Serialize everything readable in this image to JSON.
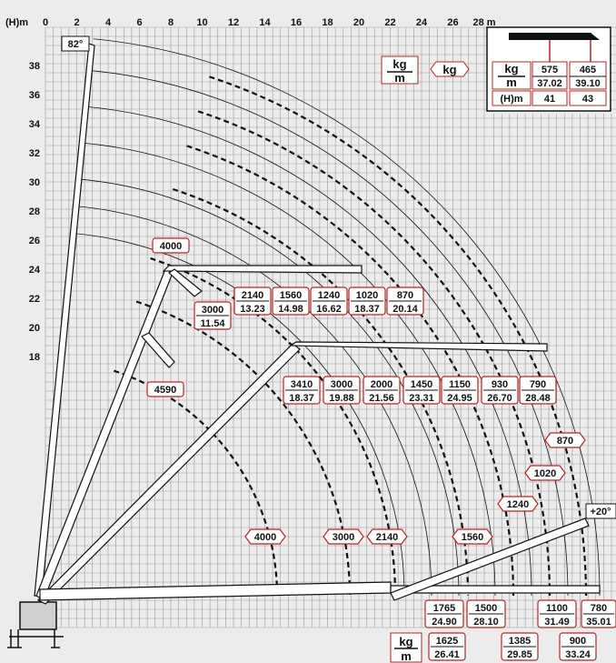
{
  "chart_data": {
    "type": "diagram",
    "x_axis": {
      "unit_label": "(H)m",
      "ticks": [
        "0",
        "2",
        "4",
        "6",
        "8",
        "10",
        "12",
        "14",
        "16",
        "18",
        "20",
        "22",
        "24",
        "26",
        "28 m"
      ]
    },
    "y_axis": {
      "ticks": [
        "38",
        "36",
        "34",
        "32",
        "30",
        "28",
        "26",
        "24",
        "22",
        "20",
        "18"
      ]
    },
    "angles": {
      "max": "82°",
      "min": "+20°"
    },
    "header_legend": {
      "kg_per_m_top": "kg",
      "kg_per_m_bottom": "m",
      "kg": "kg"
    },
    "extension_table": {
      "kg_top": "kg",
      "kg_bottom": "m",
      "h_label": "(H)m",
      "columns": [
        {
          "load": "575",
          "reach": "37.02",
          "height": "41"
        },
        {
          "load": "465",
          "reach": "39.10",
          "height": "43"
        }
      ]
    },
    "upper_loads": [
      {
        "load": "4000"
      },
      {
        "load": "3000",
        "reach": "11.54"
      },
      {
        "load": "2140",
        "reach": "13.23"
      },
      {
        "load": "1560",
        "reach": "14.98"
      },
      {
        "load": "1240",
        "reach": "16.62"
      },
      {
        "load": "1020",
        "reach": "18.37"
      },
      {
        "load": "870",
        "reach": "20.14"
      }
    ],
    "middle_loads": [
      {
        "load": "4590"
      },
      {
        "load": "3410",
        "reach": "18.37"
      },
      {
        "load": "3000",
        "reach": "19.88"
      },
      {
        "load": "2000",
        "reach": "21.56"
      },
      {
        "load": "1450",
        "reach": "23.31"
      },
      {
        "load": "1150",
        "reach": "24.95"
      },
      {
        "load": "930",
        "reach": "26.70"
      },
      {
        "load": "790",
        "reach": "28.48"
      }
    ],
    "curve_loads": [
      "4000",
      "3000",
      "2140",
      "1560",
      "1240",
      "1020",
      "870"
    ],
    "bottom_loads": [
      {
        "load": "1765",
        "reach": "24.90"
      },
      {
        "load": "1625",
        "reach": "26.41"
      },
      {
        "load": "1500",
        "reach": "28.10"
      },
      {
        "load": "1385",
        "reach": "29.85"
      },
      {
        "load": "1100",
        "reach": "31.49"
      },
      {
        "load": "900",
        "reach": "33.24"
      },
      {
        "load": "780",
        "reach": "35.01"
      }
    ],
    "bottom_kg_top": "kg",
    "bottom_kg_bottom": "m"
  }
}
